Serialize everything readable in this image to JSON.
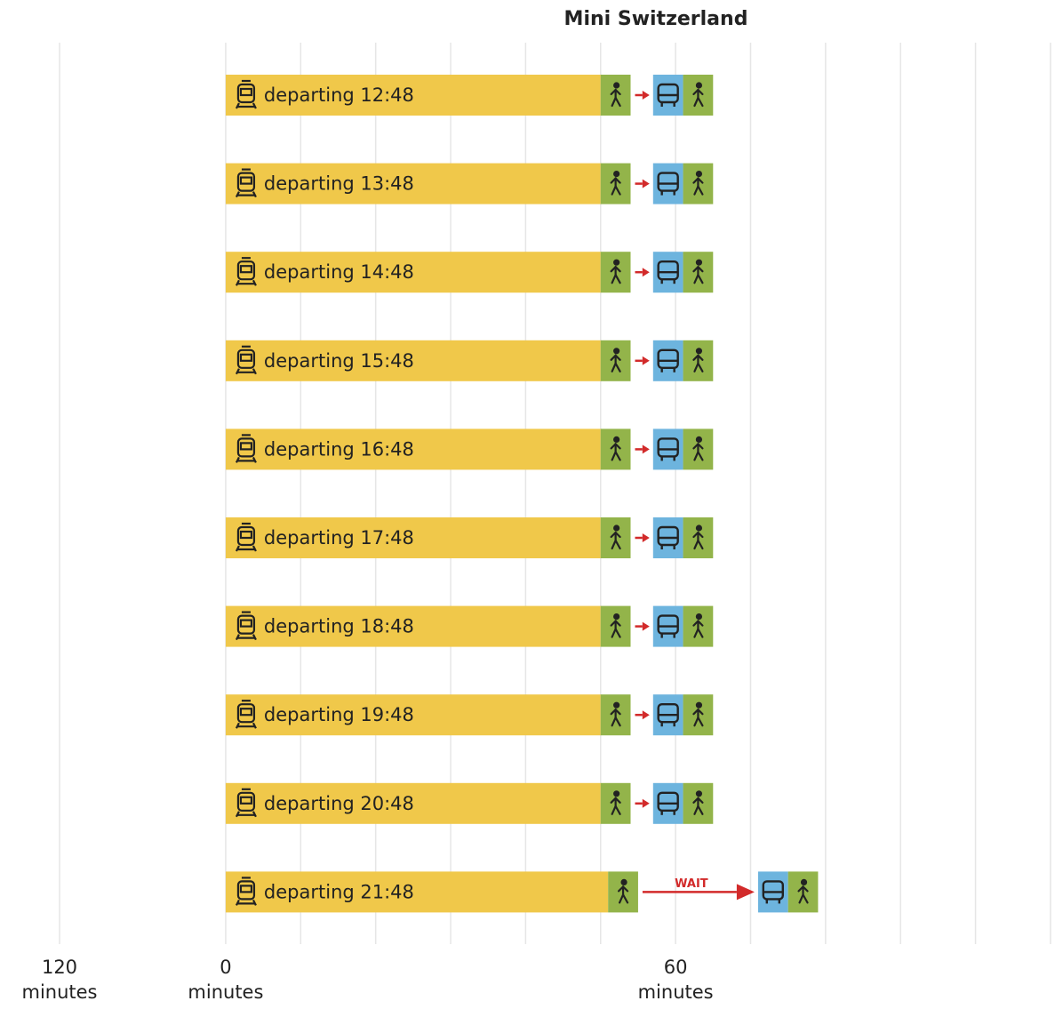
{
  "chart_data": {
    "type": "timeline",
    "title": "Mini Switzerland",
    "colors": {
      "train": "#f0c84a",
      "walk": "#93b44a",
      "bus": "#6db4de"
    },
    "xlim": [
      -30.1,
      110.6
    ],
    "xticks": [
      {
        "value": 0,
        "label": "0\nminutes"
      },
      {
        "value": 60,
        "label": "60\nminutes"
      }
    ],
    "grid_lines": [
      0,
      10,
      20,
      30,
      40,
      50,
      60,
      70,
      80,
      90,
      100,
      110
    ],
    "side_label": "120\nminutes",
    "rows": [
      {
        "label": "departing 12:48",
        "segments": [
          {
            "mode": "train",
            "start": 0,
            "end": 50
          },
          {
            "mode": "walk",
            "start": 50,
            "end": 54
          },
          {
            "mode": "bus",
            "start": 57,
            "end": 61
          },
          {
            "mode": "walk",
            "start": 61,
            "end": 65
          }
        ]
      },
      {
        "label": "departing 13:48",
        "segments": [
          {
            "mode": "train",
            "start": 0,
            "end": 50
          },
          {
            "mode": "walk",
            "start": 50,
            "end": 54
          },
          {
            "mode": "bus",
            "start": 57,
            "end": 61
          },
          {
            "mode": "walk",
            "start": 61,
            "end": 65
          }
        ]
      },
      {
        "label": "departing 14:48",
        "segments": [
          {
            "mode": "train",
            "start": 0,
            "end": 50
          },
          {
            "mode": "walk",
            "start": 50,
            "end": 54
          },
          {
            "mode": "bus",
            "start": 57,
            "end": 61
          },
          {
            "mode": "walk",
            "start": 61,
            "end": 65
          }
        ]
      },
      {
        "label": "departing 15:48",
        "segments": [
          {
            "mode": "train",
            "start": 0,
            "end": 50
          },
          {
            "mode": "walk",
            "start": 50,
            "end": 54
          },
          {
            "mode": "bus",
            "start": 57,
            "end": 61
          },
          {
            "mode": "walk",
            "start": 61,
            "end": 65
          }
        ]
      },
      {
        "label": "departing 16:48",
        "segments": [
          {
            "mode": "train",
            "start": 0,
            "end": 50
          },
          {
            "mode": "walk",
            "start": 50,
            "end": 54
          },
          {
            "mode": "bus",
            "start": 57,
            "end": 61
          },
          {
            "mode": "walk",
            "start": 61,
            "end": 65
          }
        ]
      },
      {
        "label": "departing 17:48",
        "segments": [
          {
            "mode": "train",
            "start": 0,
            "end": 50
          },
          {
            "mode": "walk",
            "start": 50,
            "end": 54
          },
          {
            "mode": "bus",
            "start": 57,
            "end": 61
          },
          {
            "mode": "walk",
            "start": 61,
            "end": 65
          }
        ]
      },
      {
        "label": "departing 18:48",
        "segments": [
          {
            "mode": "train",
            "start": 0,
            "end": 50
          },
          {
            "mode": "walk",
            "start": 50,
            "end": 54
          },
          {
            "mode": "bus",
            "start": 57,
            "end": 61
          },
          {
            "mode": "walk",
            "start": 61,
            "end": 65
          }
        ]
      },
      {
        "label": "departing 19:48",
        "segments": [
          {
            "mode": "train",
            "start": 0,
            "end": 50
          },
          {
            "mode": "walk",
            "start": 50,
            "end": 54
          },
          {
            "mode": "bus",
            "start": 57,
            "end": 61
          },
          {
            "mode": "walk",
            "start": 61,
            "end": 65
          }
        ]
      },
      {
        "label": "departing 20:48",
        "segments": [
          {
            "mode": "train",
            "start": 0,
            "end": 50
          },
          {
            "mode": "walk",
            "start": 50,
            "end": 54
          },
          {
            "mode": "bus",
            "start": 57,
            "end": 61
          },
          {
            "mode": "walk",
            "start": 61,
            "end": 65
          }
        ]
      },
      {
        "label": "departing 21:48",
        "annotation": "WAIT",
        "segments": [
          {
            "mode": "train",
            "start": 0,
            "end": 51
          },
          {
            "mode": "walk",
            "start": 51,
            "end": 55
          },
          {
            "mode": "bus",
            "start": 71,
            "end": 75
          },
          {
            "mode": "walk",
            "start": 75,
            "end": 79
          }
        ]
      }
    ]
  }
}
